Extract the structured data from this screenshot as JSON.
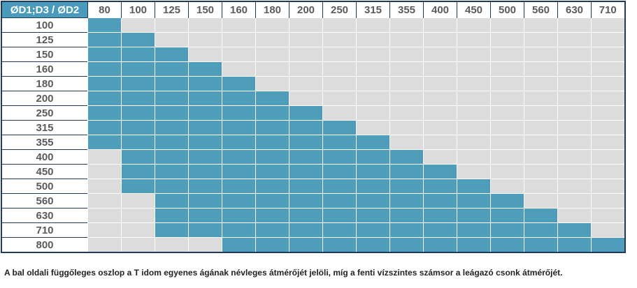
{
  "corner_label": "ØD1;D3 / ØD2",
  "columns": [
    "80",
    "100",
    "125",
    "150",
    "160",
    "180",
    "200",
    "250",
    "315",
    "355",
    "400",
    "450",
    "500",
    "560",
    "630",
    "710"
  ],
  "rows": [
    {
      "label": "100",
      "from": "80",
      "to": "80"
    },
    {
      "label": "125",
      "from": "80",
      "to": "100"
    },
    {
      "label": "150",
      "from": "80",
      "to": "125"
    },
    {
      "label": "160",
      "from": "80",
      "to": "150"
    },
    {
      "label": "180",
      "from": "80",
      "to": "160"
    },
    {
      "label": "200",
      "from": "80",
      "to": "180"
    },
    {
      "label": "250",
      "from": "80",
      "to": "200"
    },
    {
      "label": "315",
      "from": "80",
      "to": "250"
    },
    {
      "label": "355",
      "from": "80",
      "to": "315"
    },
    {
      "label": "400",
      "from": "100",
      "to": "355"
    },
    {
      "label": "450",
      "from": "100",
      "to": "400"
    },
    {
      "label": "500",
      "from": "100",
      "to": "450"
    },
    {
      "label": "560",
      "from": "125",
      "to": "500"
    },
    {
      "label": "630",
      "from": "125",
      "to": "560"
    },
    {
      "label": "710",
      "from": "125",
      "to": "630"
    },
    {
      "label": "800",
      "from": "160",
      "to": "710"
    }
  ],
  "colors": {
    "available": "#4e9dba",
    "unavailable": "#dcdcdc",
    "header": "#4a9bbb"
  },
  "note": "A bal oldali függőleges oszlop a T idom egyenes ágának névleges átmérőjét jelöli, míg a fenti vízszintes számsor a leágazó csonk átmérőjét."
}
